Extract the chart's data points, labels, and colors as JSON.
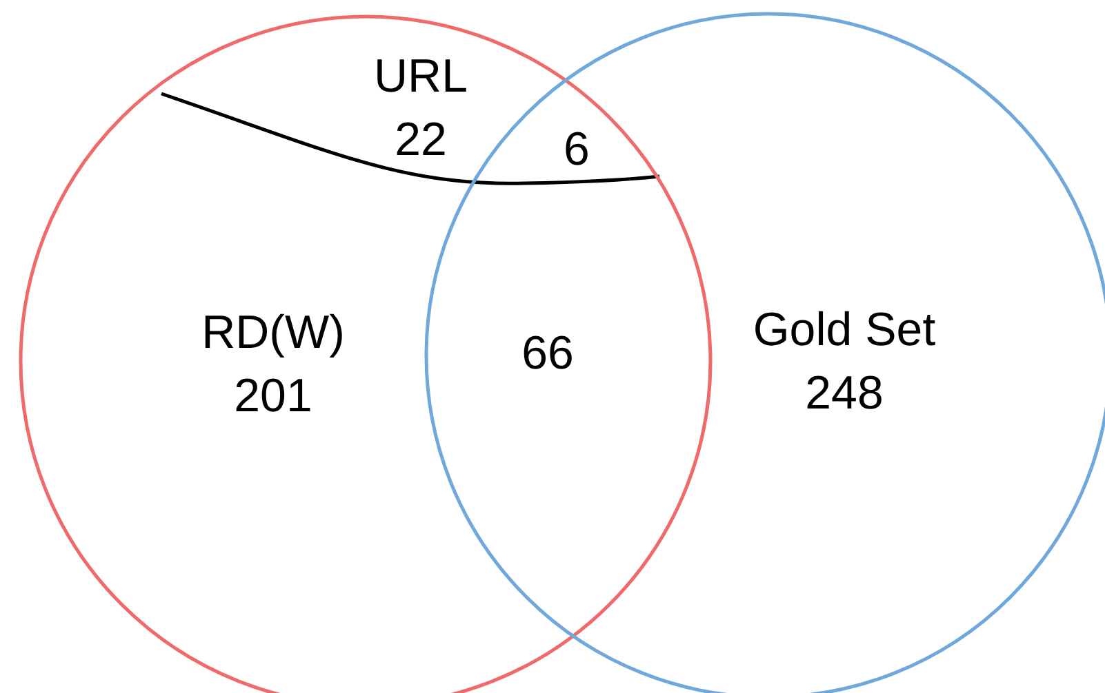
{
  "chart_data": {
    "type": "other",
    "categories": [
      "URL",
      null,
      "RD(W)",
      null,
      "Gold Set"
    ],
    "values": [
      22,
      6,
      201,
      66,
      248
    ],
    "colors": [
      "#000000",
      null,
      "#ef6a6a",
      null,
      "#70a8dc"
    ],
    "data_labels": true
  }
}
